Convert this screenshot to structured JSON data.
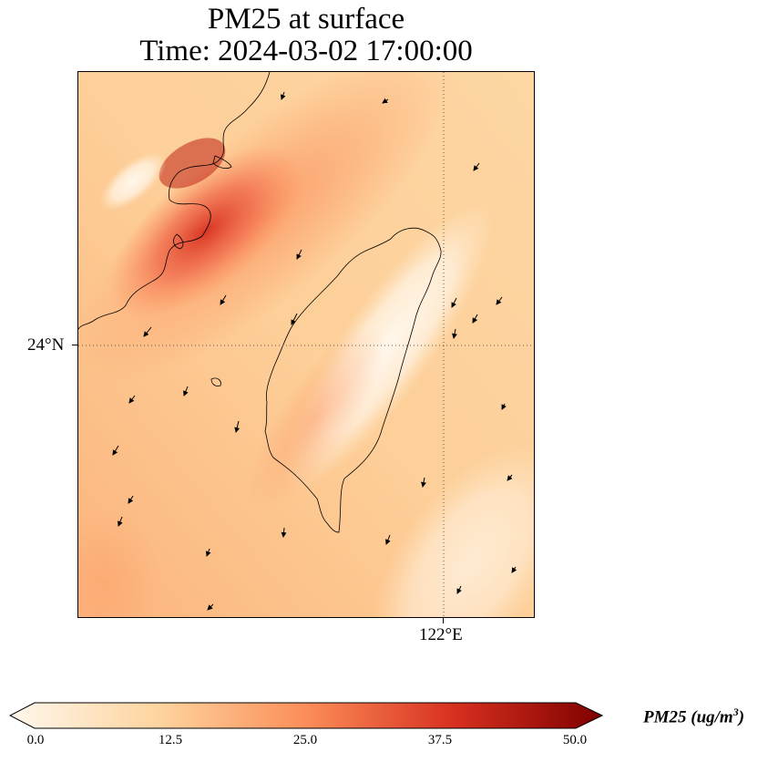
{
  "title": {
    "line1": "PM25 at surface",
    "line2": "Time: 2024-03-02 17:00:00"
  },
  "map": {
    "lat_gridline_label": "24°N",
    "lon_gridline_label": "122°E",
    "field": "PM25",
    "field_colormap": "OrRd",
    "vectors": "wind arrows, predominantly from NE toward SW"
  },
  "colorbar": {
    "ticks": [
      "0.0",
      "12.5",
      "25.0",
      "37.5",
      "50.0"
    ],
    "range": [
      0,
      50
    ],
    "extend": "both",
    "label_main": "PM25 (ug/m",
    "label_sup": "3",
    "label_end": ")",
    "colors": [
      "#fff7ec",
      "#fdd49e",
      "#fc8d59",
      "#d7301f",
      "#7f0000"
    ]
  }
}
